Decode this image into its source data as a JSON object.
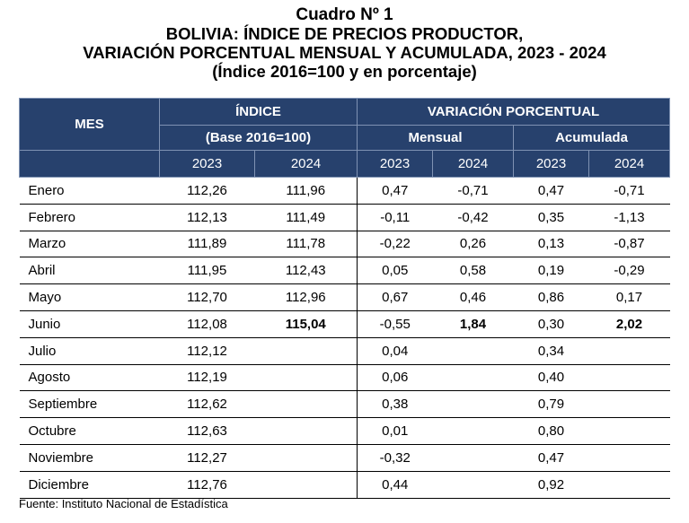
{
  "title": {
    "line1": "Cuadro Nº 1",
    "line2": "BOLIVIA: ÍNDICE DE PRECIOS PRODUCTOR,",
    "line3": "VARIACIÓN PORCENTUAL MENSUAL Y ACUMULADA, 2023 - 2024",
    "line4": "(Índice 2016=100 y en porcentaje)"
  },
  "header": {
    "mes": "MES",
    "indice": "ÍNDICE",
    "base": "(Base 2016=100)",
    "variacion": "VARIACIÓN PORCENTUAL",
    "mensual": "Mensual",
    "acumulada": "Acumulada",
    "years": [
      "2023",
      "2024",
      "2023",
      "2024",
      "2023",
      "2024"
    ]
  },
  "rows": [
    {
      "mes": "Enero",
      "i2023": "112,26",
      "i2024": "111,96",
      "m2023": "0,47",
      "m2024": "-0,71",
      "a2023": "0,47",
      "a2024": "-0,71"
    },
    {
      "mes": "Febrero",
      "i2023": "112,13",
      "i2024": "111,49",
      "m2023": "-0,11",
      "m2024": "-0,42",
      "a2023": "0,35",
      "a2024": "-1,13"
    },
    {
      "mes": "Marzo",
      "i2023": "111,89",
      "i2024": "111,78",
      "m2023": "-0,22",
      "m2024": "0,26",
      "a2023": "0,13",
      "a2024": "-0,87"
    },
    {
      "mes": "Abril",
      "i2023": "111,95",
      "i2024": "112,43",
      "m2023": "0,05",
      "m2024": "0,58",
      "a2023": "0,19",
      "a2024": "-0,29"
    },
    {
      "mes": "Mayo",
      "i2023": "112,70",
      "i2024": "112,96",
      "m2023": "0,67",
      "m2024": "0,46",
      "a2023": "0,86",
      "a2024": "0,17"
    },
    {
      "mes": "Junio",
      "i2023": "112,08",
      "i2024": "115,04",
      "m2023": "-0,55",
      "m2024": "1,84",
      "a2023": "0,30",
      "a2024": "2,02"
    },
    {
      "mes": "Julio",
      "i2023": "112,12",
      "i2024": "",
      "m2023": "0,04",
      "m2024": "",
      "a2023": "0,34",
      "a2024": ""
    },
    {
      "mes": "Agosto",
      "i2023": "112,19",
      "i2024": "",
      "m2023": "0,06",
      "m2024": "",
      "a2023": "0,40",
      "a2024": ""
    },
    {
      "mes": "Septiembre",
      "i2023": "112,62",
      "i2024": "",
      "m2023": "0,38",
      "m2024": "",
      "a2023": "0,79",
      "a2024": ""
    },
    {
      "mes": "Octubre",
      "i2023": "112,63",
      "i2024": "",
      "m2023": "0,01",
      "m2024": "",
      "a2023": "0,80",
      "a2024": ""
    },
    {
      "mes": "Noviembre",
      "i2023": "112,27",
      "i2024": "",
      "m2023": "-0,32",
      "m2024": "",
      "a2023": "0,47",
      "a2024": ""
    },
    {
      "mes": "Diciembre",
      "i2023": "112,76",
      "i2024": "",
      "m2023": "0,44",
      "m2024": "",
      "a2023": "0,92",
      "a2024": ""
    }
  ],
  "source": "Fuente: Instituto Nacional de Estadística"
}
